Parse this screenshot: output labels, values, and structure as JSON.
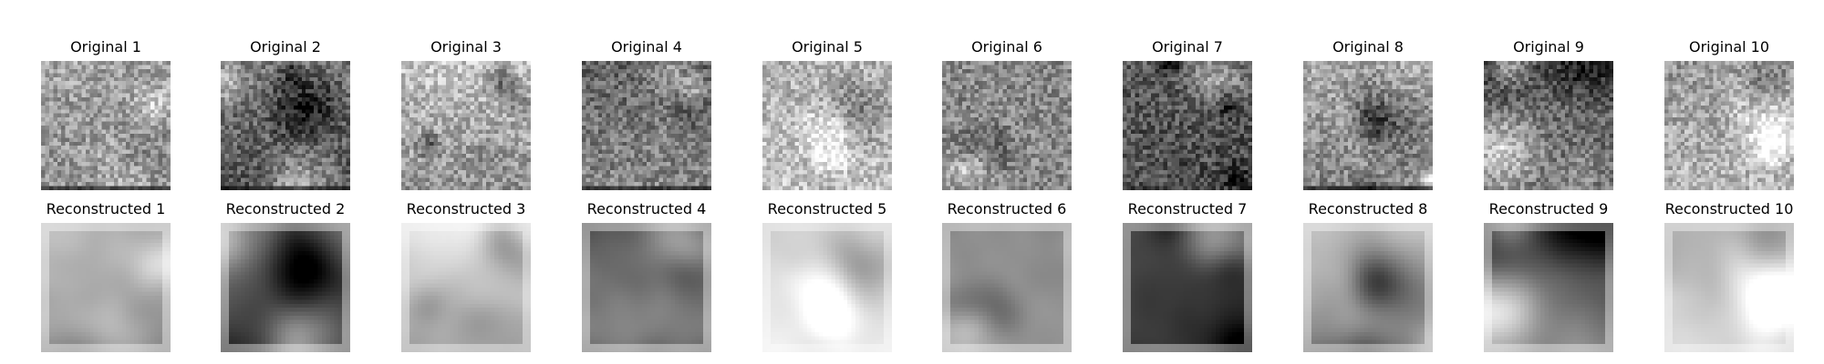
{
  "chart_data": {
    "type": "image-grid",
    "rows": [
      {
        "name": "original",
        "titles": [
          "Original 1",
          "Original 2",
          "Original 3",
          "Original 4",
          "Original 5",
          "Original 6",
          "Original 7",
          "Original 8",
          "Original 9",
          "Original 10"
        ],
        "colormap": "gray"
      },
      {
        "name": "reconstructed",
        "titles": [
          "Reconstructed 1",
          "Reconstructed 2",
          "Reconstructed 3",
          "Reconstructed 4",
          "Reconstructed 5",
          "Reconstructed 6",
          "Reconstructed 7",
          "Reconstructed 8",
          "Reconstructed 9",
          "Reconstructed 10"
        ],
        "colormap": "gray"
      }
    ],
    "columns": 10,
    "image_resolution": "32x32 grayscale",
    "axes_visible": false
  }
}
